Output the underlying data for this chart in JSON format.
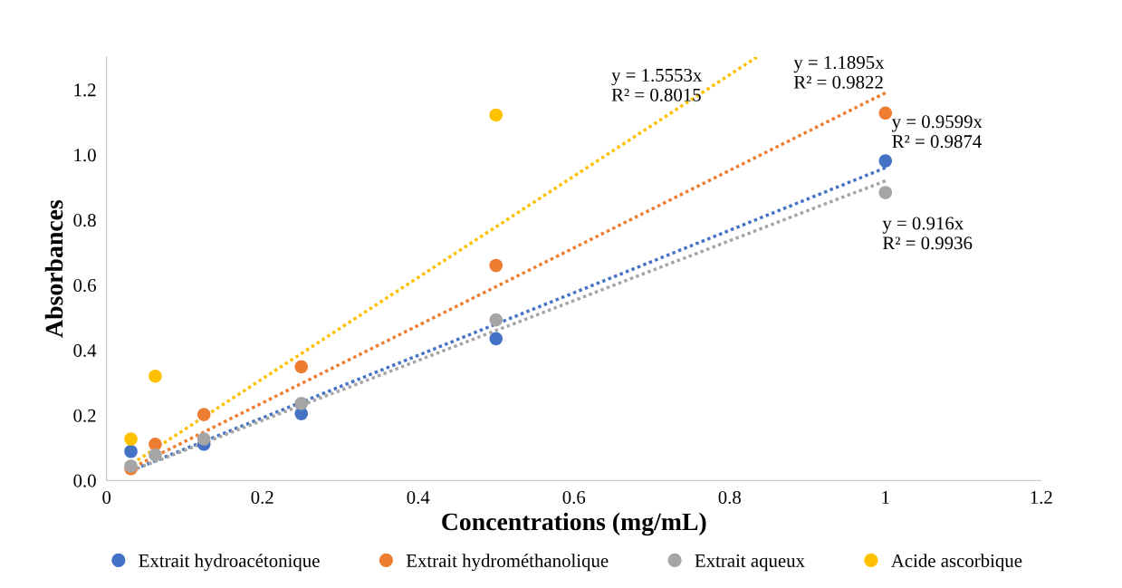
{
  "chart_data": {
    "type": "scatter",
    "xlabel": "Concentrations (mg/mL)",
    "ylabel": "Absorbances",
    "xlim": [
      0,
      1.2
    ],
    "ylim": [
      0,
      1.3
    ],
    "xticks": [
      0,
      {
        "value": 0.2,
        "label": "0.2"
      },
      {
        "value": 0.4,
        "label": "0.4"
      },
      {
        "value": 0.6,
        "label": "0.6"
      },
      {
        "value": 0.8,
        "label": "0.8"
      },
      1,
      {
        "value": 1.2,
        "label": "1.2"
      }
    ],
    "yticks": [
      {
        "value": 0,
        "label": "0.0"
      },
      {
        "value": 0.2,
        "label": "0.2"
      },
      {
        "value": 0.4,
        "label": "0.4"
      },
      {
        "value": 0.6,
        "label": "0.6"
      },
      {
        "value": 0.8,
        "label": "0.8"
      },
      {
        "value": 1.0,
        "label": "1.0"
      },
      {
        "value": 1.2,
        "label": "1.2"
      }
    ],
    "grid": false,
    "legend": "bottom",
    "marker": "circle",
    "series": [
      {
        "name": "Extrait hydroacétonique",
        "color": "#4472c4",
        "x": [
          0.03125,
          0.0625,
          0.125,
          0.25,
          0.5,
          1
        ],
        "values": [
          0.089,
          null,
          0.111,
          0.205,
          0.435,
          0.981
        ]
      },
      {
        "name": "Extrait hydrométhanolique",
        "color": "#ed7d31",
        "x": [
          0.03125,
          0.0625,
          0.125,
          0.25,
          0.5,
          1
        ],
        "values": [
          0.036,
          0.111,
          0.202,
          0.349,
          0.66,
          1.128
        ]
      },
      {
        "name": "Extrait aqueux",
        "color": "#a5a5a5",
        "x": [
          0.03125,
          0.0625,
          0.125,
          0.25,
          0.5,
          1
        ],
        "values": [
          0.044,
          0.078,
          0.127,
          0.236,
          0.493,
          0.884
        ]
      },
      {
        "name": "Acide ascorbique",
        "color": "#ffc000",
        "x": [
          0.03125,
          0.0625,
          0.5
        ],
        "values": [
          0.127,
          0.32,
          1.122
        ]
      },
      {
        "type": "line",
        "marker": "none",
        "line_style": "dotted",
        "color": "#4472c4",
        "x": [
          0.03125,
          1
        ],
        "values": [
          0.03,
          0.96
        ]
      },
      {
        "type": "line",
        "marker": "none",
        "line_style": "dotted",
        "color": "#ed7d31",
        "x": [
          0.03125,
          1
        ],
        "values": [
          0.037,
          1.19
        ]
      },
      {
        "type": "line",
        "marker": "none",
        "line_style": "dotted",
        "color": "#a5a5a5",
        "x": [
          0.03125,
          1
        ],
        "values": [
          0.029,
          0.92
        ]
      },
      {
        "type": "line",
        "marker": "none",
        "line_style": "dotted",
        "color": "#ffc000",
        "x": [
          0.03125,
          0.835
        ],
        "values": [
          0.049,
          1.3
        ]
      }
    ],
    "annotations": [
      "y = 1.5553x\nR² = 0.8015",
      "y = 1.1895x\nR² = 0.9822",
      "y = 0.9599x\nR² = 0.9874",
      "y = 0.916x\nR² = 0.9936"
    ]
  }
}
